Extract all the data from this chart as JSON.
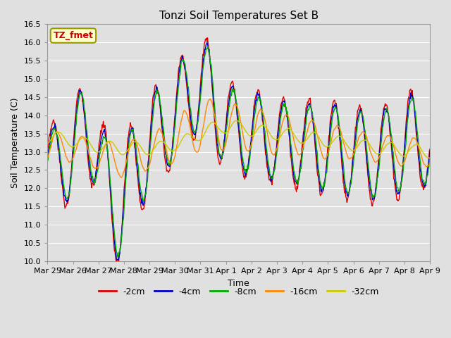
{
  "title": "Tonzi Soil Temperatures Set B",
  "xlabel": "Time",
  "ylabel": "Soil Temperature (C)",
  "ylim": [
    10.0,
    16.5
  ],
  "yticks": [
    10.0,
    10.5,
    11.0,
    11.5,
    12.0,
    12.5,
    13.0,
    13.5,
    14.0,
    14.5,
    15.0,
    15.5,
    16.0,
    16.5
  ],
  "xtick_labels": [
    "Mar 25",
    "Mar 26",
    "Mar 27",
    "Mar 28",
    "Mar 29",
    "Mar 30",
    "Mar 31",
    "Apr 1",
    "Apr 2",
    "Apr 3",
    "Apr 4",
    "Apr 5",
    "Apr 6",
    "Apr 7",
    "Apr 8",
    "Apr 9"
  ],
  "series_colors": [
    "#dd0000",
    "#0000cc",
    "#00aa00",
    "#ff8800",
    "#cccc00"
  ],
  "series_labels": [
    "-2cm",
    "-4cm",
    "-8cm",
    "-16cm",
    "-32cm"
  ],
  "legend_label": "TZ_fmet",
  "background_color": "#e0e0e0",
  "plot_bg_color": "#e0e0e0",
  "grid_color": "#ffffff",
  "linewidth": 1.0,
  "n_days": 15,
  "pts_per_day": 48
}
